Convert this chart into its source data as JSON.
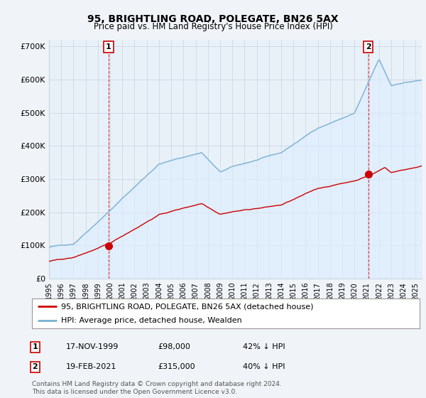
{
  "title": "95, BRIGHTLING ROAD, POLEGATE, BN26 5AX",
  "subtitle": "Price paid vs. HM Land Registry's House Price Index (HPI)",
  "ylim": [
    0,
    720000
  ],
  "yticks": [
    0,
    100000,
    200000,
    300000,
    400000,
    500000,
    600000,
    700000
  ],
  "ytick_labels": [
    "£0",
    "£100K",
    "£200K",
    "£300K",
    "£400K",
    "£500K",
    "£600K",
    "£700K"
  ],
  "sale1": {
    "date_num": 1999.88,
    "price": 98000,
    "label": "1",
    "date_str": "17-NOV-1999",
    "price_str": "£98,000",
    "pct_str": "42% ↓ HPI"
  },
  "sale2": {
    "date_num": 2021.12,
    "price": 315000,
    "label": "2",
    "date_str": "19-FEB-2021",
    "price_str": "£315,000",
    "pct_str": "40% ↓ HPI"
  },
  "red_line_color": "#cc0000",
  "blue_line_color": "#7ab0d4",
  "blue_fill_color": "#ddeeff",
  "background_color": "#f0f4f8",
  "plot_bg_color": "#e8f0f8",
  "grid_color": "#c8d4e0",
  "legend_label_red": "95, BRIGHTLING ROAD, POLEGATE, BN26 5AX (detached house)",
  "legend_label_blue": "HPI: Average price, detached house, Wealden",
  "footer": "Contains HM Land Registry data © Crown copyright and database right 2024.\nThis data is licensed under the Open Government Licence v3.0.",
  "xmin": 1995.0,
  "xmax": 2025.5
}
